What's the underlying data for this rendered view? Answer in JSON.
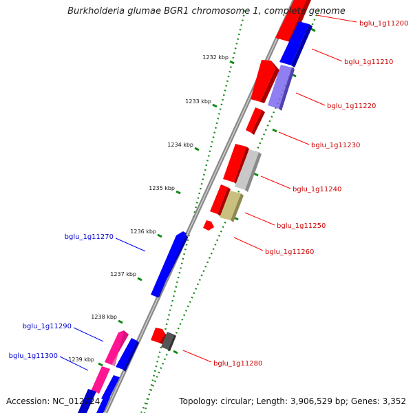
{
  "title": "Burkholderia glumae BGR1 chromosome 1, complete genome",
  "accession": "Accession: NC_012724",
  "topology": "Topology: circular; Length: 3,906,529 bp; Genes: 3,352",
  "colors": {
    "forward_gene": "#ff0000",
    "reverse_gene": "#0000ff",
    "forward_label": "#cc0000",
    "reverse_label": "#0000cc",
    "tick": "#138a13",
    "backbone": "#888888"
  },
  "ticks": [
    "1232 kbp",
    "1233 kbp",
    "1234 kbp",
    "1235 kbp",
    "1236 kbp",
    "1237 kbp",
    "1238 kbp",
    "1239 kbp"
  ],
  "gene_labels": [
    {
      "name": "bglu_1g11200",
      "strand": "forward"
    },
    {
      "name": "bglu_1g11210",
      "strand": "forward"
    },
    {
      "name": "bglu_1g11220",
      "strand": "forward"
    },
    {
      "name": "bglu_1g11230",
      "strand": "forward"
    },
    {
      "name": "bglu_1g11240",
      "strand": "forward"
    },
    {
      "name": "bglu_1g11250",
      "strand": "forward"
    },
    {
      "name": "bglu_1g11260",
      "strand": "forward"
    },
    {
      "name": "bglu_1g11270",
      "strand": "reverse"
    },
    {
      "name": "bglu_1g11280",
      "strand": "forward"
    },
    {
      "name": "bglu_1g11290",
      "strand": "reverse"
    },
    {
      "name": "bglu_1g11300",
      "strand": "reverse"
    }
  ]
}
